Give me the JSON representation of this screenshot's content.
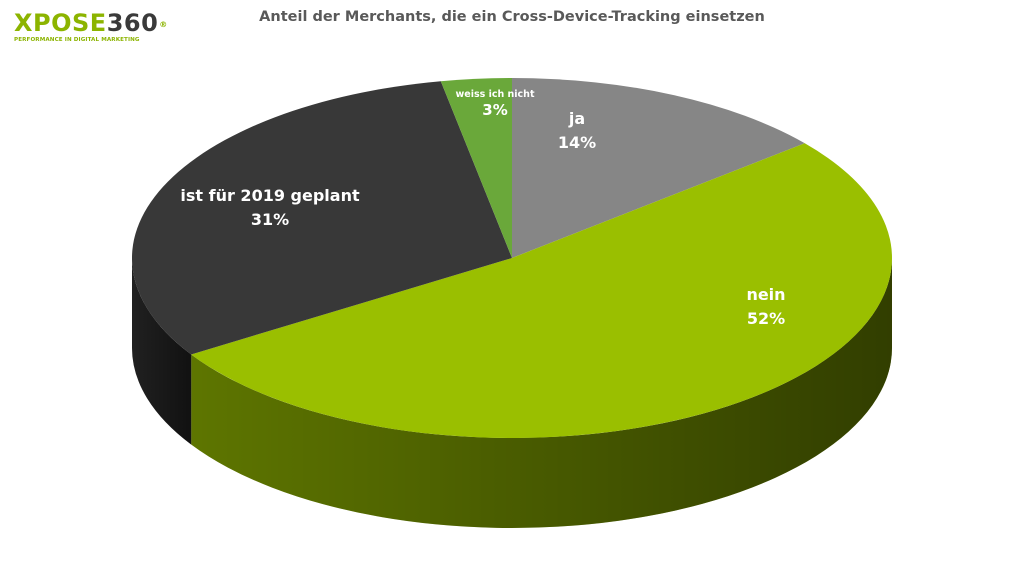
{
  "logo": {
    "part_a": "XPOSE",
    "part_b": "360",
    "reg": "®",
    "tagline": "PERFORMANCE IN DIGITAL MARKETING"
  },
  "chart_data": {
    "type": "pie",
    "title": "Anteil der Merchants, die ein Cross-Device-Tracking einsetzen",
    "three_d": true,
    "slices": [
      {
        "label": "ja",
        "value": 14,
        "value_label": "14%",
        "color": "#868686",
        "side_color": "#555555"
      },
      {
        "label": "nein",
        "value": 52,
        "value_label": "52%",
        "color": "#9abf00",
        "side_color": "#6e8a00"
      },
      {
        "label": "ist für 2019 geplant",
        "value": 31,
        "value_label": "31%",
        "color": "#383838",
        "side_color": "#262626"
      },
      {
        "label": "weiss ich nicht",
        "value": 3,
        "value_label": "3%",
        "color": "#6aa83a",
        "side_color": "#4a7a28"
      }
    ]
  }
}
